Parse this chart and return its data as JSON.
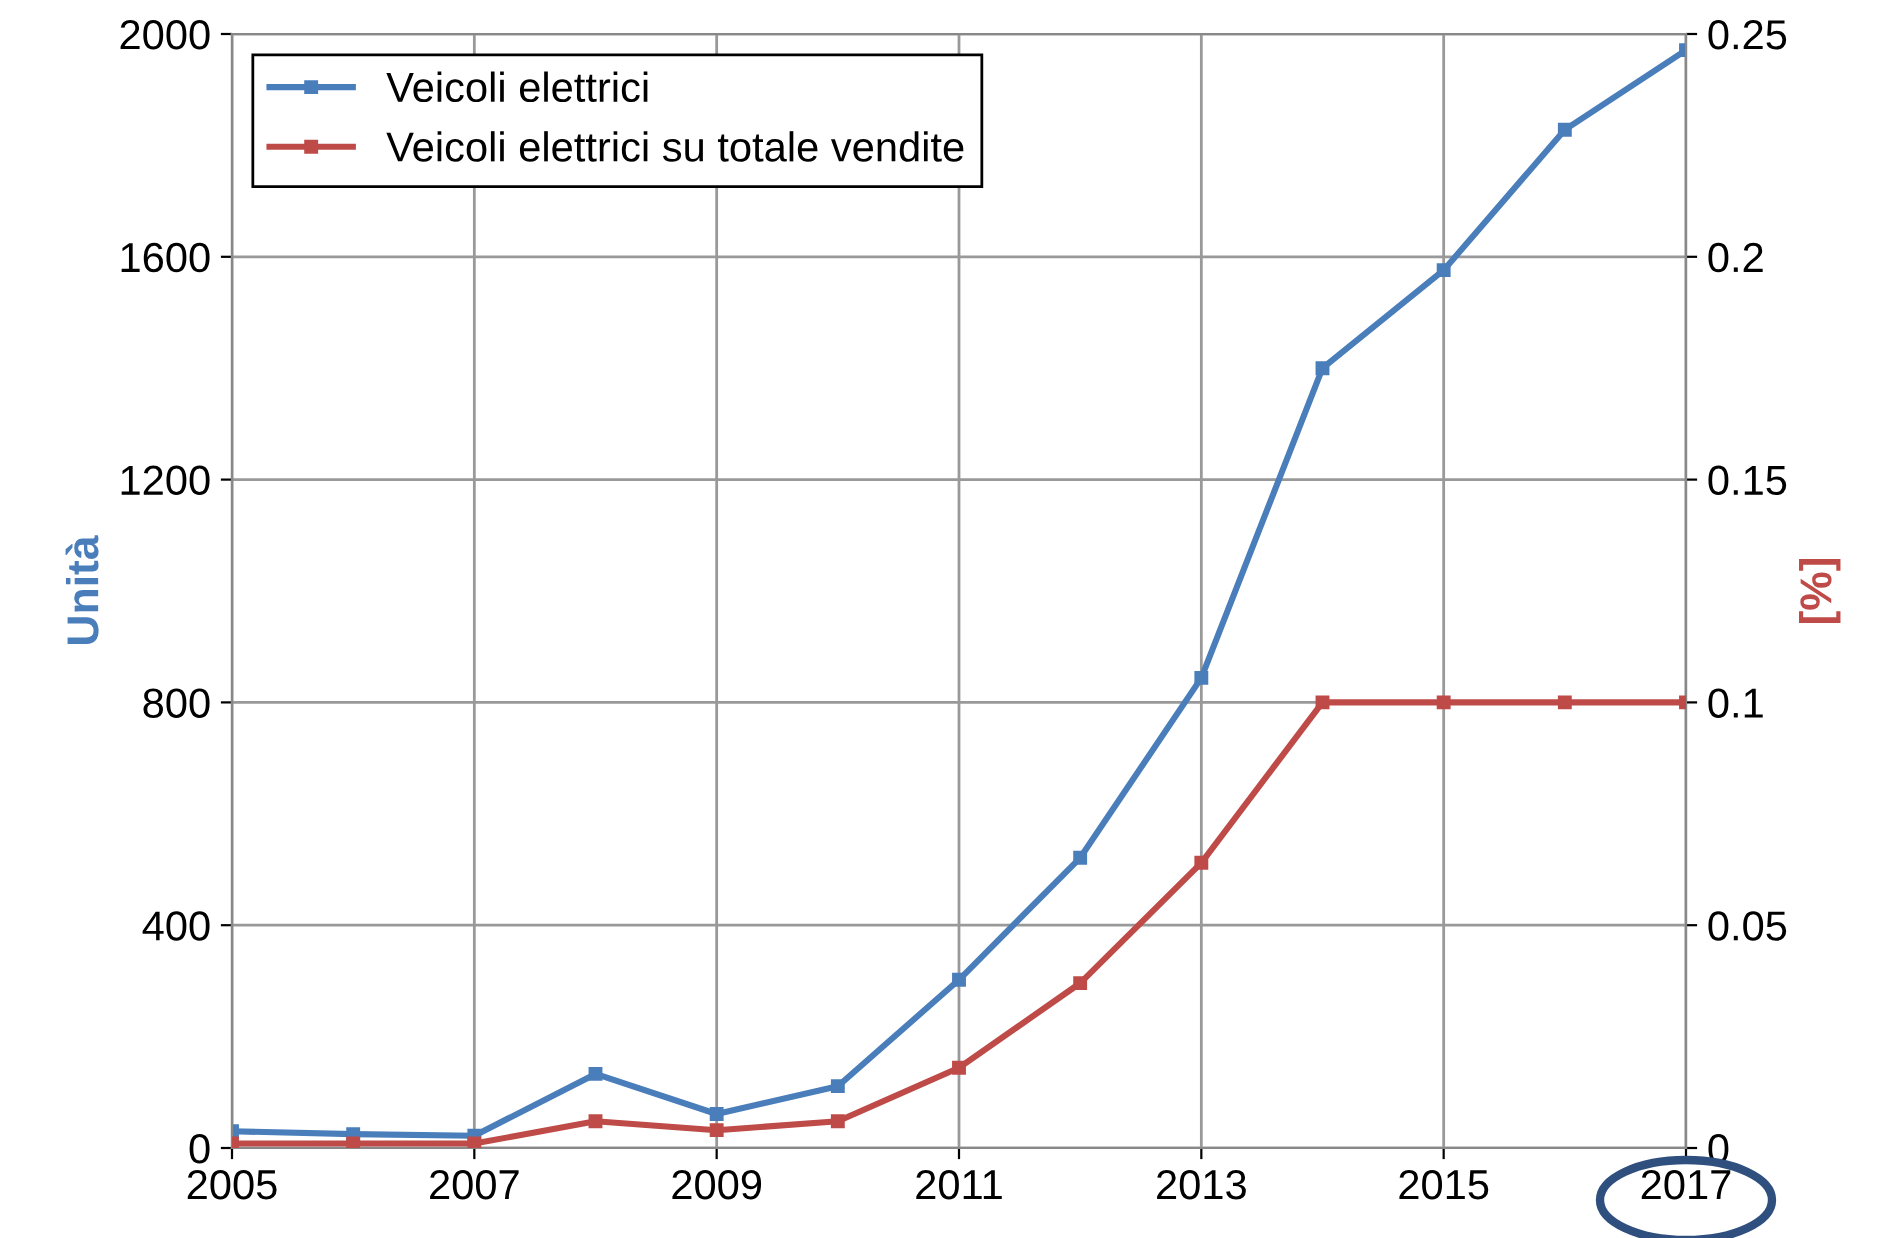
{
  "chart_data": {
    "type": "line",
    "x": [
      2005,
      2006,
      2007,
      2008,
      2009,
      2010,
      2011,
      2012,
      2013,
      2014,
      2015,
      2016,
      2017
    ],
    "series": [
      {
        "name": "Veicoli elettrici",
        "color": "#4a7ebb",
        "values": [
          30,
          25,
          22,
          133,
          61,
          111,
          302,
          521,
          844,
          1400,
          1576,
          1828,
          1971
        ]
      },
      {
        "name": "Veicoli elettrici su totale vendite",
        "color": "#be4b48",
        "axis": "y2",
        "values": [
          0.001,
          0.001,
          0.001,
          0.006,
          0.004,
          0.006,
          0.018,
          0.037,
          0.064,
          0.1,
          0.1,
          0.1,
          0.1
        ]
      }
    ],
    "ylabel": "Unità",
    "y2label": "[%]",
    "xlim": [
      2005,
      2017
    ],
    "xticks": [
      2005,
      2007,
      2009,
      2011,
      2013,
      2015,
      2017
    ],
    "ylim": [
      0,
      2000
    ],
    "yticks": [
      0,
      400,
      800,
      1200,
      1600,
      2000
    ],
    "y2lim": [
      0,
      0.25
    ],
    "y2ticks": [
      0,
      0.05,
      0.1,
      0.15,
      0.2,
      0.25
    ],
    "grid": true,
    "legend": "top left",
    "marker": "square",
    "line_style": "solid"
  }
}
